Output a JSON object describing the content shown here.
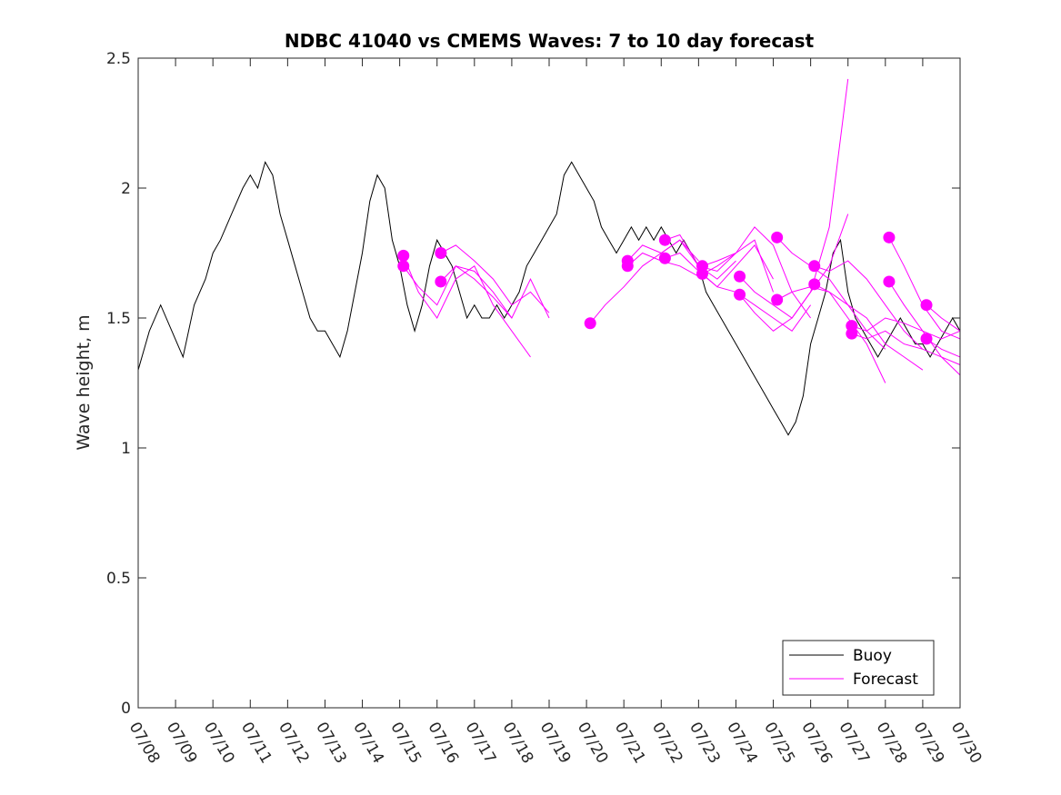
{
  "chart_data": {
    "type": "line",
    "title": "NDBC 41040 vs CMEMS Waves: 7 to 10 day forecast",
    "xlabel": "",
    "ylabel": "Wave height, m",
    "xlim": [
      "07/08",
      "07/30"
    ],
    "ylim": [
      0,
      2.5
    ],
    "yticks": [
      0,
      0.5,
      1,
      1.5,
      2,
      2.5
    ],
    "ytick_labels": [
      "0",
      "0.5",
      "1",
      "1.5",
      "2",
      "2.5"
    ],
    "xtick_labels": [
      "07/08",
      "07/09",
      "07/10",
      "07/11",
      "07/12",
      "07/13",
      "07/14",
      "07/15",
      "07/16",
      "07/17",
      "07/18",
      "07/19",
      "07/20",
      "07/21",
      "07/22",
      "07/23",
      "07/24",
      "07/25",
      "07/26",
      "07/27",
      "07/28",
      "07/29",
      "07/30"
    ],
    "legend": {
      "position": "bottom-right",
      "entries": [
        {
          "label": "Buoy",
          "color": "#000000"
        },
        {
          "label": "Forecast",
          "color": "#ff00ff"
        }
      ]
    },
    "series": [
      {
        "name": "Buoy",
        "color": "#000000",
        "x": [
          0,
          0.3,
          0.6,
          0.9,
          1.2,
          1.5,
          1.8,
          2.0,
          2.2,
          2.5,
          2.8,
          3.0,
          3.2,
          3.4,
          3.6,
          3.8,
          4.0,
          4.2,
          4.4,
          4.6,
          4.8,
          5.0,
          5.2,
          5.4,
          5.6,
          5.8,
          6.0,
          6.2,
          6.4,
          6.6,
          6.8,
          7.0,
          7.2,
          7.4,
          7.6,
          7.8,
          8.0,
          8.2,
          8.4,
          8.6,
          8.8,
          9.0,
          9.2,
          9.4,
          9.6,
          9.8,
          10.0,
          10.2,
          10.4,
          10.6,
          10.8,
          11.0,
          11.2,
          11.4,
          11.6,
          11.8,
          12.0,
          12.2,
          12.4,
          12.6,
          12.8,
          13.0,
          13.2,
          13.4,
          13.6,
          13.8,
          14.0,
          14.2,
          14.4,
          14.6,
          14.8,
          15.0,
          15.2,
          15.4,
          15.6,
          15.8,
          16.0,
          16.2,
          16.4,
          16.6,
          16.8,
          17.0,
          17.2,
          17.4,
          17.6,
          17.8,
          18.0,
          18.2,
          18.4,
          18.6,
          18.8,
          19.0,
          19.2,
          19.4,
          19.6,
          19.8,
          20.0,
          20.2,
          20.4,
          20.6,
          20.8,
          21.0,
          21.2,
          21.4,
          21.6,
          21.8,
          22.0
        ],
        "y": [
          1.3,
          1.45,
          1.55,
          1.45,
          1.35,
          1.55,
          1.65,
          1.75,
          1.8,
          1.9,
          2.0,
          2.05,
          2.0,
          2.1,
          2.05,
          1.9,
          1.8,
          1.7,
          1.6,
          1.5,
          1.45,
          1.45,
          1.4,
          1.35,
          1.45,
          1.6,
          1.75,
          1.95,
          2.05,
          2.0,
          1.8,
          1.7,
          1.55,
          1.45,
          1.55,
          1.7,
          1.8,
          1.75,
          1.7,
          1.6,
          1.5,
          1.55,
          1.5,
          1.5,
          1.55,
          1.5,
          1.55,
          1.6,
          1.7,
          1.75,
          1.8,
          1.85,
          1.9,
          2.05,
          2.1,
          2.05,
          2.0,
          1.95,
          1.85,
          1.8,
          1.75,
          1.8,
          1.85,
          1.8,
          1.85,
          1.8,
          1.85,
          1.8,
          1.75,
          1.8,
          1.75,
          1.7,
          1.6,
          1.55,
          1.5,
          1.45,
          1.4,
          1.35,
          1.3,
          1.25,
          1.2,
          1.15,
          1.1,
          1.05,
          1.1,
          1.2,
          1.4,
          1.5,
          1.6,
          1.75,
          1.8,
          1.6,
          1.5,
          1.45,
          1.4,
          1.35,
          1.4,
          1.45,
          1.5,
          1.45,
          1.4,
          1.4,
          1.35,
          1.4,
          1.45,
          1.5,
          1.45
        ]
      },
      {
        "name": "Forecast",
        "color": "#ff00ff",
        "lines": [
          {
            "x": [
              7.1,
              7.5,
              8.0,
              8.5,
              9.0,
              9.5,
              10.0,
              10.5
            ],
            "y": [
              1.74,
              1.6,
              1.5,
              1.65,
              1.7,
              1.55,
              1.45,
              1.35
            ]
          },
          {
            "x": [
              7.1,
              7.5,
              8.0,
              8.5,
              9.0,
              9.5,
              10.0
            ],
            "y": [
              1.7,
              1.62,
              1.55,
              1.7,
              1.65,
              1.58,
              1.5
            ]
          },
          {
            "x": [
              8.1,
              8.5,
              9.0,
              9.5,
              10.0,
              10.5,
              11.0
            ],
            "y": [
              1.75,
              1.78,
              1.72,
              1.65,
              1.55,
              1.6,
              1.52
            ]
          },
          {
            "x": [
              8.1,
              8.5,
              9.0,
              9.5,
              10.0,
              10.5,
              11.0
            ],
            "y": [
              1.64,
              1.7,
              1.68,
              1.6,
              1.5,
              1.65,
              1.5
            ]
          },
          {
            "x": [
              12.1,
              12.5,
              13.0,
              13.5,
              14.0,
              14.5,
              15.0
            ],
            "y": [
              1.48,
              1.55,
              1.62,
              1.7,
              1.75,
              1.8,
              1.72
            ]
          },
          {
            "x": [
              13.1,
              13.5,
              14.0,
              14.5,
              15.0,
              15.5,
              16.0
            ],
            "y": [
              1.72,
              1.78,
              1.75,
              1.8,
              1.7,
              1.65,
              1.72
            ]
          },
          {
            "x": [
              13.1,
              13.5,
              14.0,
              14.5,
              15.0,
              15.5,
              16.0
            ],
            "y": [
              1.7,
              1.75,
              1.72,
              1.7,
              1.66,
              1.7,
              1.75
            ]
          },
          {
            "x": [
              14.1,
              14.5,
              15.0,
              15.5,
              16.0,
              16.5,
              17.0
            ],
            "y": [
              1.8,
              1.82,
              1.7,
              1.68,
              1.75,
              1.8,
              1.6
            ]
          },
          {
            "x": [
              14.1,
              14.5,
              15.0,
              15.5,
              16.0,
              16.5,
              17.0
            ],
            "y": [
              1.73,
              1.75,
              1.68,
              1.62,
              1.7,
              1.78,
              1.65
            ]
          },
          {
            "x": [
              15.1,
              15.5,
              16.0,
              16.5,
              17.0,
              17.5,
              18.0
            ],
            "y": [
              1.7,
              1.72,
              1.75,
              1.85,
              1.78,
              1.6,
              1.5
            ]
          },
          {
            "x": [
              15.1,
              15.5,
              16.0,
              16.5,
              17.0,
              17.5,
              18.0
            ],
            "y": [
              1.67,
              1.62,
              1.6,
              1.55,
              1.5,
              1.45,
              1.55
            ]
          },
          {
            "x": [
              16.1,
              16.5,
              17.0,
              17.5,
              18.0,
              18.5,
              19.0
            ],
            "y": [
              1.66,
              1.6,
              1.55,
              1.5,
              1.6,
              1.7,
              1.9
            ]
          },
          {
            "x": [
              16.1,
              16.5,
              17.0,
              17.5,
              18.0,
              18.5,
              19.0
            ],
            "y": [
              1.59,
              1.52,
              1.45,
              1.5,
              1.6,
              1.85,
              2.42
            ]
          },
          {
            "x": [
              17.1,
              17.5,
              18.0,
              18.5,
              19.0,
              19.5,
              20.0
            ],
            "y": [
              1.81,
              1.75,
              1.7,
              1.65,
              1.55,
              1.45,
              1.38
            ]
          },
          {
            "x": [
              17.1,
              17.5,
              18.0,
              18.5,
              19.0,
              19.5,
              20.0
            ],
            "y": [
              1.57,
              1.6,
              1.62,
              1.6,
              1.5,
              1.4,
              1.25
            ]
          },
          {
            "x": [
              18.1,
              18.5,
              19.0,
              19.5,
              20.0,
              20.5,
              21.0
            ],
            "y": [
              1.7,
              1.68,
              1.72,
              1.65,
              1.55,
              1.45,
              1.38
            ]
          },
          {
            "x": [
              18.1,
              18.5,
              19.0,
              19.5,
              20.0,
              20.5,
              21.0
            ],
            "y": [
              1.63,
              1.6,
              1.55,
              1.5,
              1.4,
              1.35,
              1.3
            ]
          },
          {
            "x": [
              19.1,
              19.5,
              20.0,
              20.5,
              21.0,
              21.5,
              22.0
            ],
            "y": [
              1.47,
              1.45,
              1.5,
              1.48,
              1.45,
              1.42,
              1.45
            ]
          },
          {
            "x": [
              19.1,
              19.5,
              20.0,
              20.5,
              21.0,
              21.5,
              22.0
            ],
            "y": [
              1.44,
              1.42,
              1.45,
              1.4,
              1.38,
              1.35,
              1.32
            ]
          },
          {
            "x": [
              20.1,
              20.5,
              21.0,
              21.5,
              22.0
            ],
            "y": [
              1.81,
              1.7,
              1.55,
              1.45,
              1.42
            ]
          },
          {
            "x": [
              20.1,
              20.5,
              21.0,
              21.5,
              22.0
            ],
            "y": [
              1.64,
              1.55,
              1.45,
              1.35,
              1.28
            ]
          },
          {
            "x": [
              21.1,
              21.5,
              22.0
            ],
            "y": [
              1.55,
              1.5,
              1.45
            ]
          },
          {
            "x": [
              21.1,
              21.5,
              22.0
            ],
            "y": [
              1.42,
              1.38,
              1.35
            ]
          }
        ],
        "markers": [
          {
            "x": 7.1,
            "y": 1.74
          },
          {
            "x": 7.1,
            "y": 1.7
          },
          {
            "x": 8.1,
            "y": 1.75
          },
          {
            "x": 8.1,
            "y": 1.64
          },
          {
            "x": 12.1,
            "y": 1.48
          },
          {
            "x": 13.1,
            "y": 1.72
          },
          {
            "x": 13.1,
            "y": 1.7
          },
          {
            "x": 14.1,
            "y": 1.8
          },
          {
            "x": 14.1,
            "y": 1.73
          },
          {
            "x": 15.1,
            "y": 1.7
          },
          {
            "x": 15.1,
            "y": 1.67
          },
          {
            "x": 16.1,
            "y": 1.66
          },
          {
            "x": 16.1,
            "y": 1.59
          },
          {
            "x": 17.1,
            "y": 1.81
          },
          {
            "x": 17.1,
            "y": 1.57
          },
          {
            "x": 18.1,
            "y": 1.7
          },
          {
            "x": 18.1,
            "y": 1.63
          },
          {
            "x": 19.1,
            "y": 1.47
          },
          {
            "x": 19.1,
            "y": 1.44
          },
          {
            "x": 20.1,
            "y": 1.81
          },
          {
            "x": 20.1,
            "y": 1.64
          },
          {
            "x": 21.1,
            "y": 1.55
          },
          {
            "x": 21.1,
            "y": 1.42
          }
        ]
      }
    ]
  }
}
